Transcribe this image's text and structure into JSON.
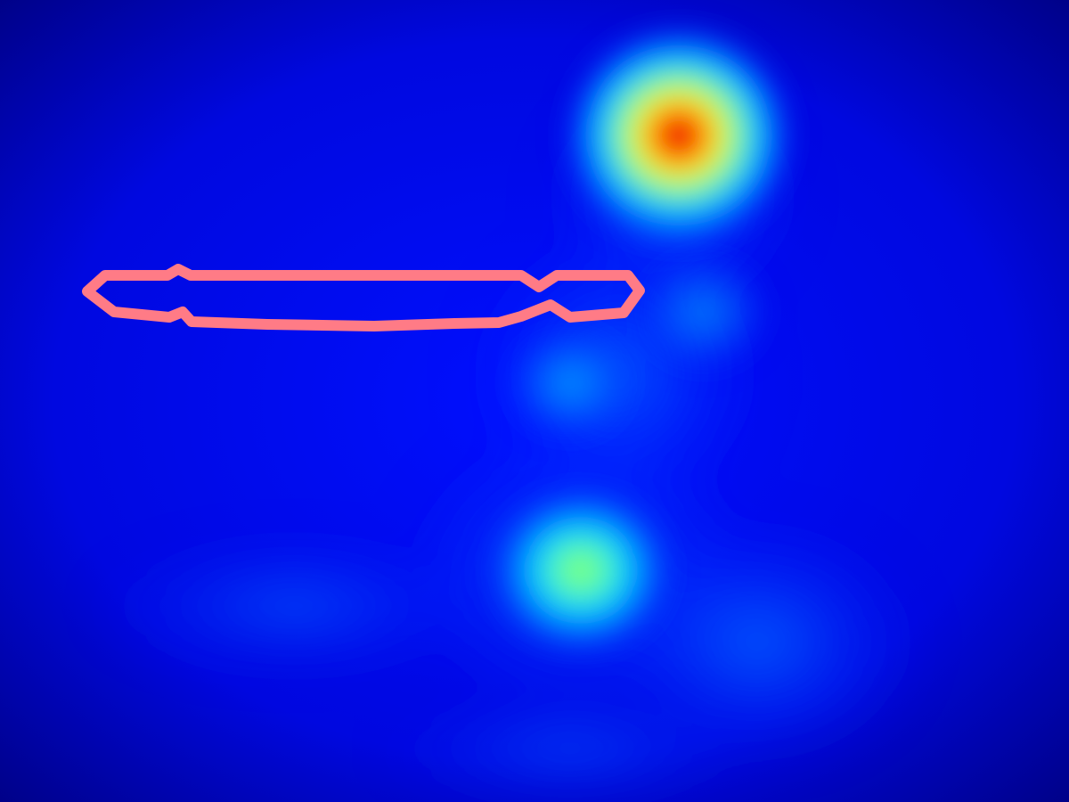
{
  "image": {
    "kind": "attention heatmap overlay",
    "colormap": "jet",
    "colors": {
      "background_blue": "#0000b4",
      "dark_blue_edge": "#00006e",
      "medium_blue": "#0014ff",
      "cyan": "#00c8ff",
      "green": "#7dff7d",
      "yellow": "#ffff00",
      "orange": "#ff6400",
      "red": "#ff0000",
      "dark_red": "#8c0000",
      "outline_pink": "#ff7b86"
    },
    "hotspots": [
      {
        "name": "primary-hotspot",
        "peak": "dark red"
      },
      {
        "name": "secondary-hotspot",
        "peak": "green"
      }
    ],
    "annotation": {
      "name": "bounding-outline",
      "color": "#ff7b86",
      "shape": "elongated horizontal outline with a notch near the right end"
    }
  }
}
